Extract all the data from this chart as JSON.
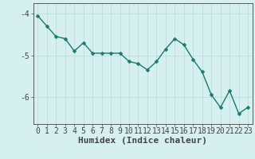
{
  "x": [
    0,
    1,
    2,
    3,
    4,
    5,
    6,
    7,
    8,
    9,
    10,
    11,
    12,
    13,
    14,
    15,
    16,
    17,
    18,
    19,
    20,
    21,
    22,
    23
  ],
  "y": [
    -4.05,
    -4.3,
    -4.55,
    -4.6,
    -4.9,
    -4.7,
    -4.95,
    -4.95,
    -4.95,
    -4.95,
    -5.15,
    -5.2,
    -5.35,
    -5.15,
    -4.85,
    -4.6,
    -4.75,
    -5.1,
    -5.4,
    -5.95,
    -6.25,
    -5.85,
    -6.4,
    -6.25
  ],
  "line_color": "#1a7a6e",
  "bg_color": "#d6f0ef",
  "grid_color": "#c0dede",
  "axis_color": "#444444",
  "xlabel": "Humidex (Indice chaleur)",
  "ylim": [
    -6.65,
    -3.75
  ],
  "xlim": [
    -0.5,
    23.5
  ],
  "yticks": [
    -6,
    -5,
    -4
  ],
  "xticks": [
    0,
    1,
    2,
    3,
    4,
    5,
    6,
    7,
    8,
    9,
    10,
    11,
    12,
    13,
    14,
    15,
    16,
    17,
    18,
    19,
    20,
    21,
    22,
    23
  ],
  "marker_size": 2.5,
  "line_width": 1.0,
  "tick_font_size": 7,
  "label_font_size": 8
}
